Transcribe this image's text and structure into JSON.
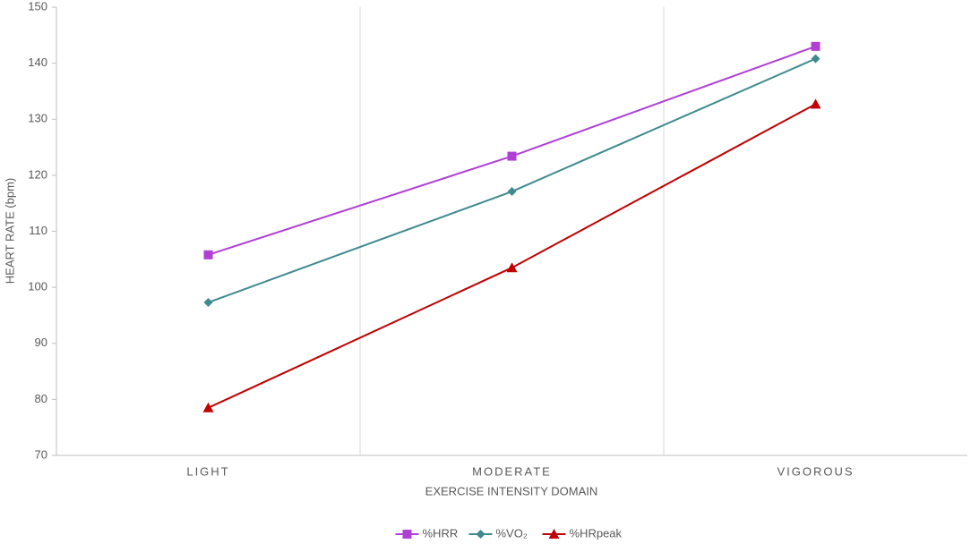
{
  "chart_data": {
    "type": "line",
    "xlabel": "EXERCISE INTENSITY DOMAIN",
    "ylabel": "HEART RATE (bpm)",
    "categories": [
      "LIGHT",
      "MODERATE",
      "VIGOROUS"
    ],
    "series": [
      {
        "name": "%HRR",
        "color": "#b03fd6",
        "marker": "square",
        "values": [
          105.8,
          123.4,
          143
        ]
      },
      {
        "name": "%VO₂",
        "color": "#3e8a8f",
        "marker": "diamond",
        "values": [
          97.3,
          117.1,
          140.8
        ]
      },
      {
        "name": "%HRpeak",
        "color": "#c00000",
        "marker": "triangle",
        "values": [
          78.5,
          103.5,
          132.7
        ]
      }
    ],
    "ylim": [
      70,
      150
    ],
    "yticks": [
      70,
      80,
      90,
      100,
      110,
      120,
      130,
      140,
      150
    ],
    "grid": true,
    "legend": "bottom"
  }
}
